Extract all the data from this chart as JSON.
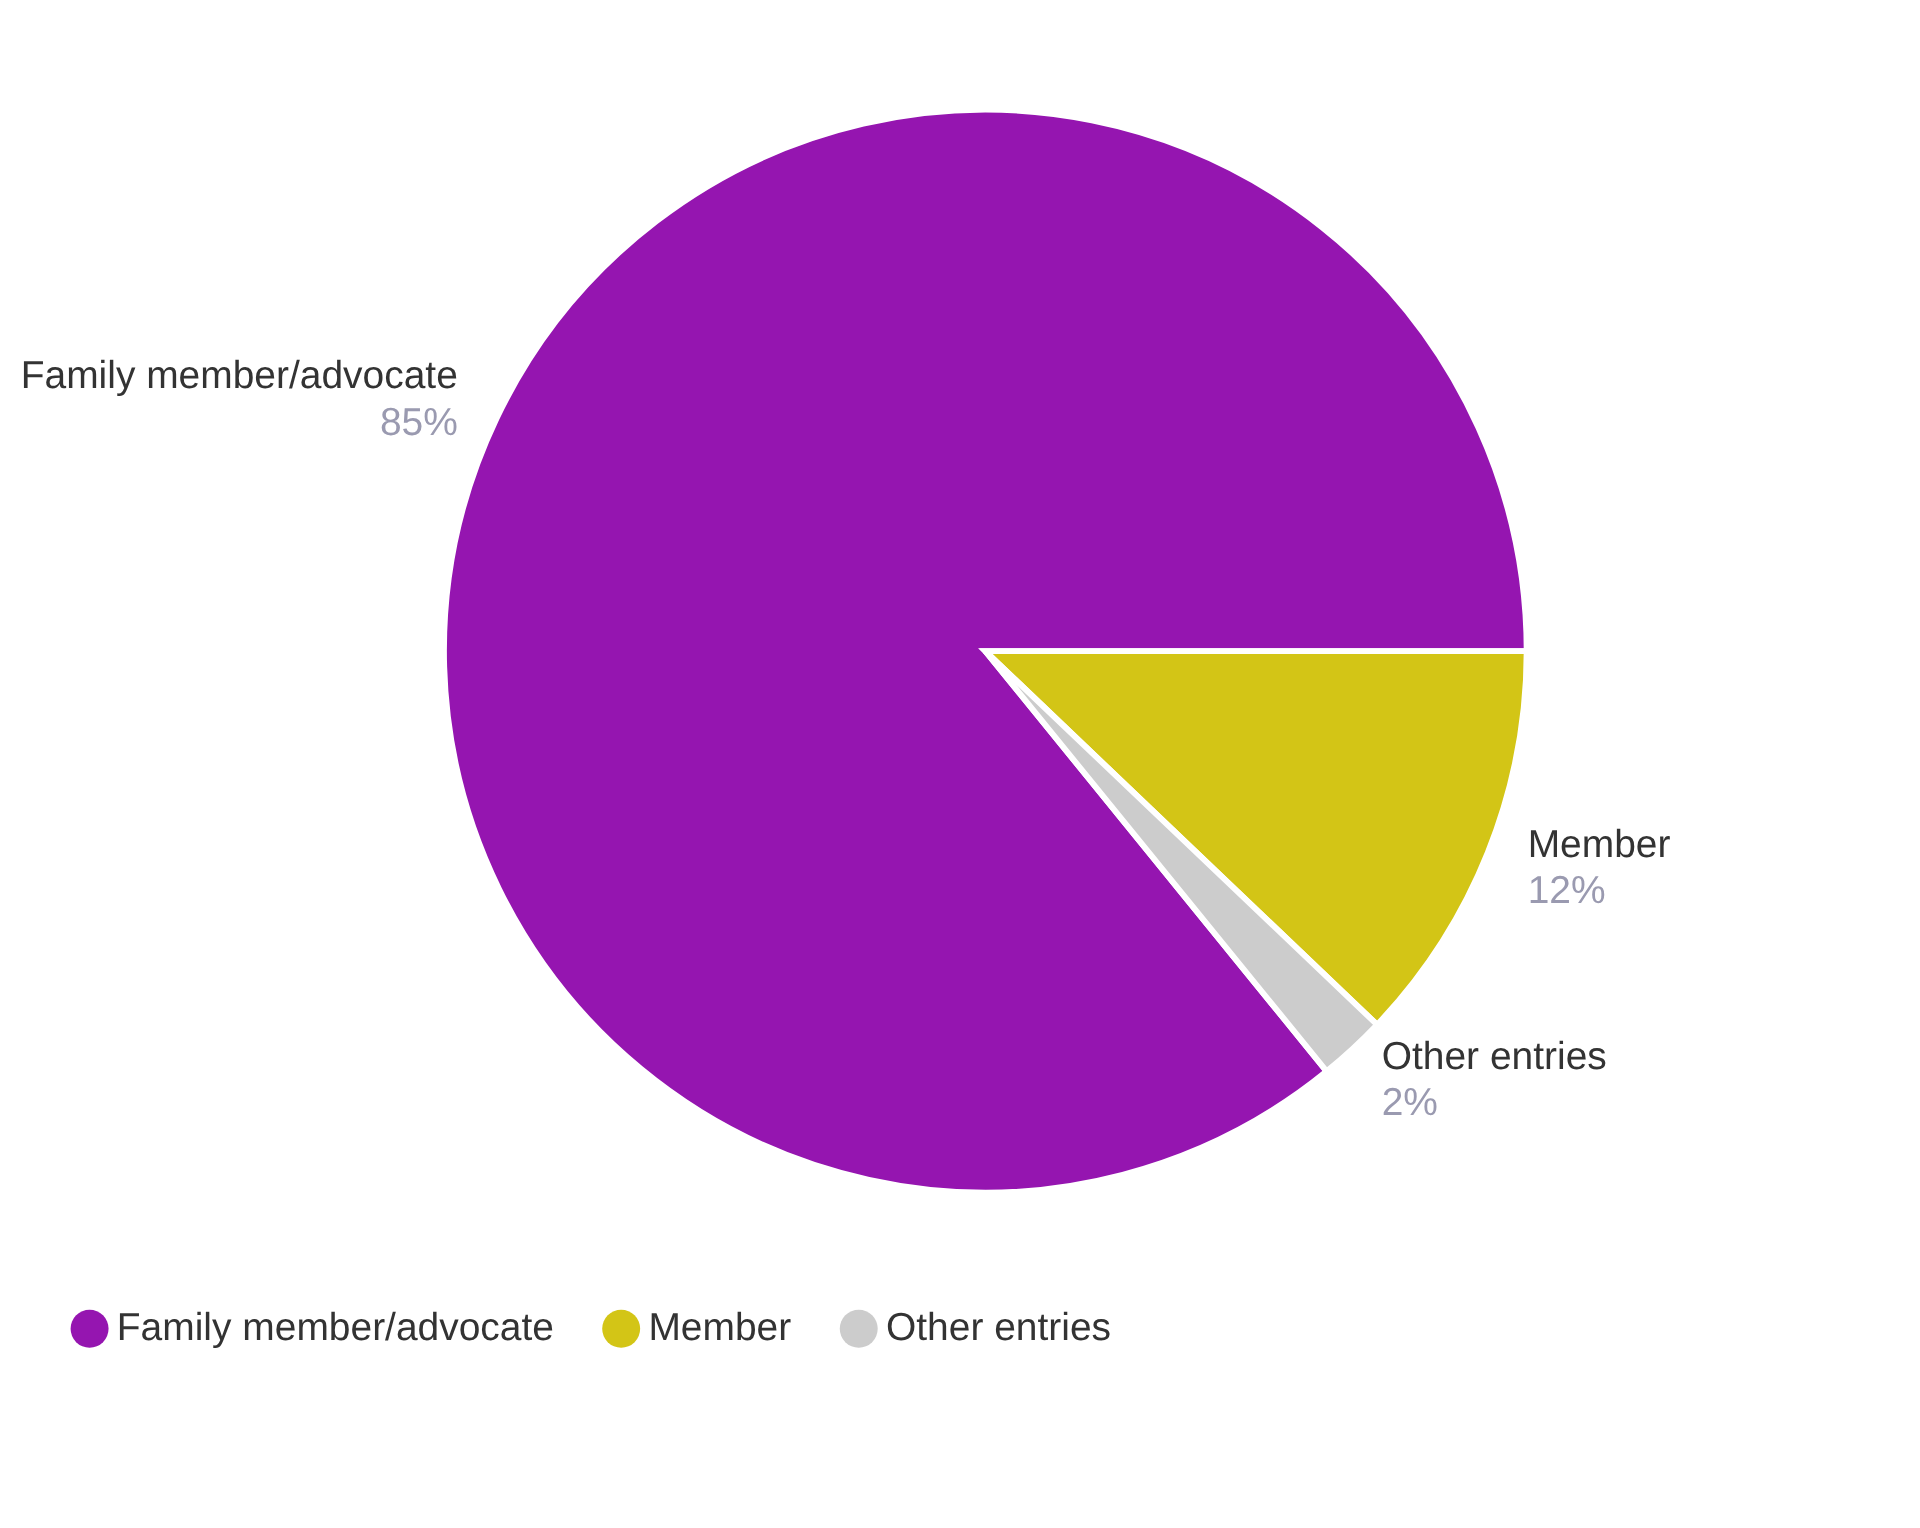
{
  "chart_data": {
    "type": "pie",
    "categories": [
      "Family member/advocate",
      "Member",
      "Other entries"
    ],
    "values": [
      85,
      12,
      2
    ],
    "colors": [
      "#9515b0",
      "#d3c516",
      "#cccccc"
    ],
    "value_labels": [
      "85%",
      "12%",
      "2%"
    ],
    "legend": "bottom"
  }
}
